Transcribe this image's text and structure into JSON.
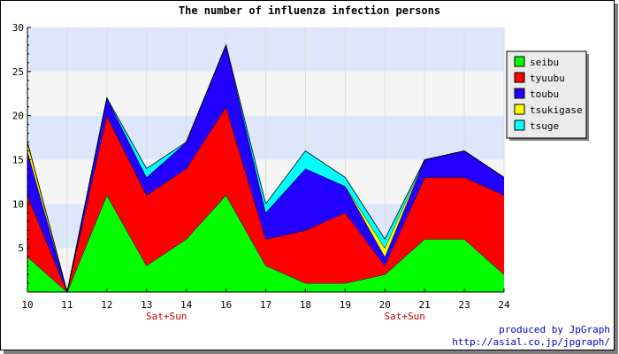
{
  "chart_data": {
    "type": "area",
    "stacked": true,
    "title": "The number of influenza infection persons",
    "xlabel": "",
    "ylabel": "",
    "categories": [
      "10",
      "11",
      "12",
      "13",
      "14",
      "16",
      "17",
      "18",
      "19",
      "20",
      "21",
      "23",
      "24"
    ],
    "ylim": [
      0,
      30
    ],
    "yticks": [
      5,
      10,
      15,
      20,
      25,
      30
    ],
    "weekend_labels": [
      {
        "label": "Sat+Sun",
        "between": [
          "13",
          "14"
        ]
      },
      {
        "label": "Sat+Sun",
        "between": [
          "20",
          "21"
        ]
      }
    ],
    "series": [
      {
        "name": "seibu",
        "color": "#00ff00",
        "values": [
          4,
          0,
          11,
          3,
          6,
          11,
          3,
          1,
          1,
          2,
          6,
          6,
          2
        ]
      },
      {
        "name": "tyuubu",
        "color": "#ff0000",
        "values": [
          7,
          0,
          9,
          8,
          8,
          10,
          3,
          6,
          8,
          1,
          7,
          7,
          9
        ]
      },
      {
        "name": "toubu",
        "color": "#2200ff",
        "values": [
          5,
          0,
          2,
          2,
          3,
          7,
          3,
          7,
          3,
          1,
          2,
          3,
          2
        ]
      },
      {
        "name": "tsukigase",
        "color": "#ffff00",
        "values": [
          1,
          0,
          0,
          0,
          0,
          0,
          0,
          0,
          0,
          1,
          0,
          0,
          0
        ]
      },
      {
        "name": "tsuge",
        "color": "#00ffff",
        "values": [
          0,
          0,
          0,
          1,
          0,
          0,
          1,
          2,
          1,
          1,
          0,
          0,
          0
        ]
      }
    ],
    "grid": true,
    "legend_position": "right"
  },
  "credit": {
    "line1": "produced by JpGraph",
    "line2": "http://asial.co.jp/jpgraph/"
  }
}
